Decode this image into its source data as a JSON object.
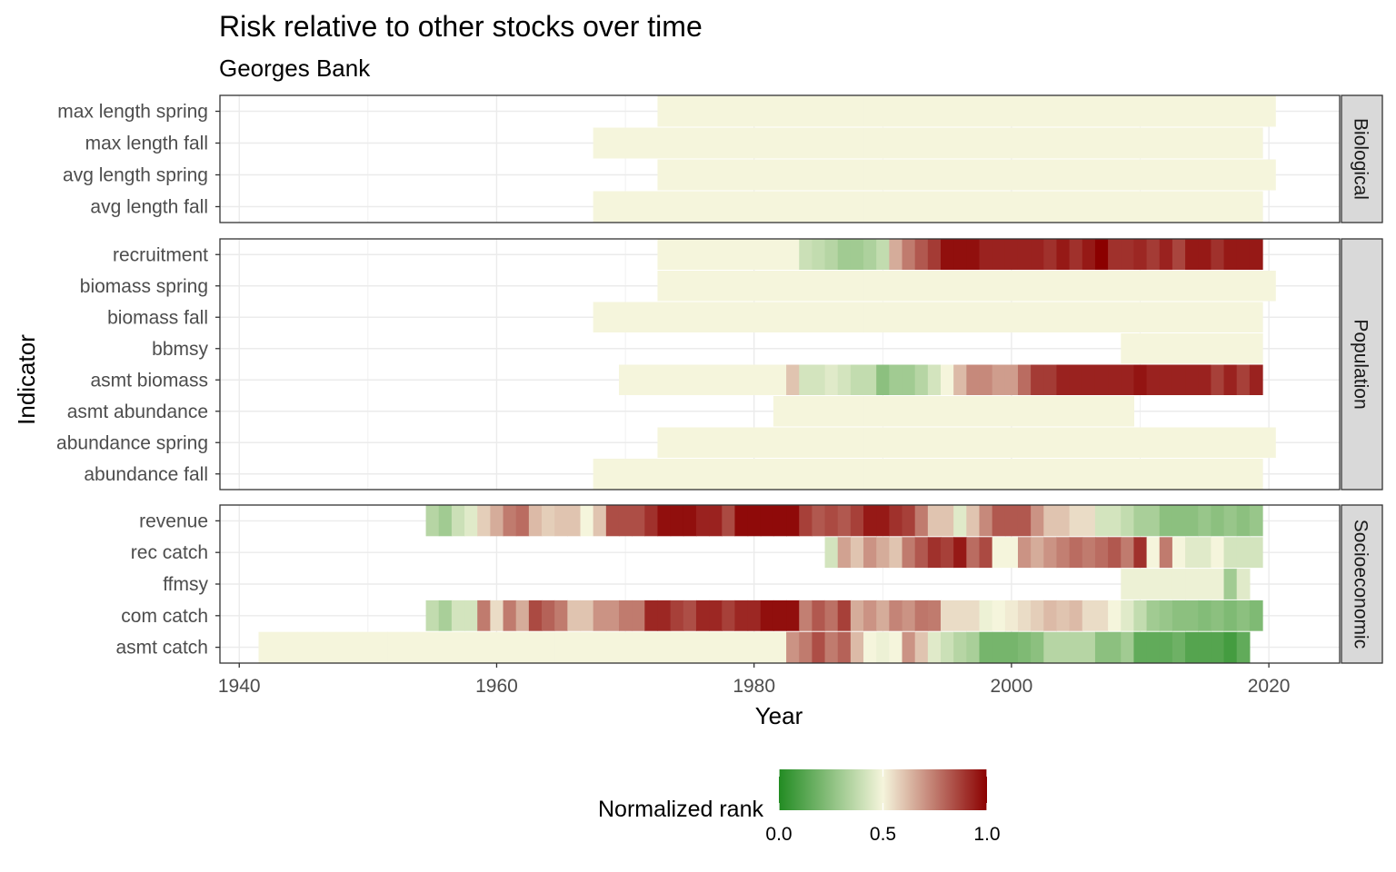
{
  "chart_data": {
    "type": "heatmap",
    "title": "Risk relative to other stocks over time",
    "subtitle": "Georges Bank",
    "xlabel": "Year",
    "ylabel": "Indicator",
    "xlim": [
      1938.5,
      2025.5
    ],
    "x_ticks": [
      1940,
      1960,
      1980,
      2000,
      2020
    ],
    "grid": true,
    "legend": {
      "title": "Normalized rank",
      "position": "bottom",
      "ticks": [
        0.0,
        0.5,
        1.0
      ],
      "tick_labels": [
        "0.0",
        "0.5",
        "1.0"
      ],
      "colors": [
        "#228B22",
        "#F5F5DC",
        "#8B0000"
      ]
    },
    "panels": [
      {
        "name": "Biological",
        "rows": [
          {
            "indicator": "max length spring",
            "segments": [
              {
                "start": 1973,
                "end": 2020,
                "values": [
                  0.5
                ]
              }
            ]
          },
          {
            "indicator": "max length fall",
            "segments": [
              {
                "start": 1968,
                "end": 2019,
                "values": [
                  0.5
                ]
              }
            ]
          },
          {
            "indicator": "avg length spring",
            "segments": [
              {
                "start": 1973,
                "end": 2020,
                "values": [
                  0.5
                ]
              }
            ]
          },
          {
            "indicator": "avg length fall",
            "segments": [
              {
                "start": 1968,
                "end": 2019,
                "values": [
                  0.5
                ]
              }
            ]
          }
        ]
      },
      {
        "name": "Population",
        "rows": [
          {
            "indicator": "recruitment",
            "segments": [
              {
                "start": 1973,
                "end": 1983,
                "values": [
                  0.5
                ]
              },
              {
                "start": 1984,
                "end": 2019,
                "values": [
                  0.4,
                  0.38,
                  0.35,
                  0.3,
                  0.3,
                  0.33,
                  0.38,
                  0.65,
                  0.75,
                  0.82,
                  0.88,
                  0.97,
                  0.97,
                  0.97,
                  0.93,
                  0.93,
                  0.93,
                  0.93,
                  0.93,
                  0.9,
                  0.95,
                  0.9,
                  0.95,
                  1.0,
                  0.9,
                  0.9,
                  0.92,
                  0.88,
                  0.93,
                  0.86,
                  0.95,
                  0.95,
                  0.9,
                  0.95,
                  0.95,
                  0.95
                ]
              }
            ]
          },
          {
            "indicator": "biomass spring",
            "segments": [
              {
                "start": 1973,
                "end": 2020,
                "values": [
                  0.5
                ]
              }
            ]
          },
          {
            "indicator": "biomass fall",
            "segments": [
              {
                "start": 1968,
                "end": 2019,
                "values": [
                  0.5
                ]
              }
            ]
          },
          {
            "indicator": "bbmsy",
            "segments": [
              {
                "start": 2009,
                "end": 2019,
                "values": [
                  0.5
                ]
              }
            ]
          },
          {
            "indicator": "asmt biomass",
            "segments": [
              {
                "start": 1970,
                "end": 1982,
                "values": [
                  0.5
                ]
              },
              {
                "start": 1983,
                "end": 2019,
                "values": [
                  0.6,
                  0.42,
                  0.42,
                  0.45,
                  0.42,
                  0.38,
                  0.38,
                  0.25,
                  0.3,
                  0.3,
                  0.35,
                  0.42,
                  0.5,
                  0.62,
                  0.72,
                  0.72,
                  0.68,
                  0.68,
                  0.78,
                  0.88,
                  0.88,
                  0.93,
                  0.93,
                  0.93,
                  0.93,
                  0.93,
                  0.93,
                  0.96,
                  0.93,
                  0.93,
                  0.93,
                  0.93,
                  0.93,
                  0.87,
                  0.93,
                  0.87,
                  0.93
                ]
              }
            ]
          },
          {
            "indicator": "asmt abundance",
            "segments": [
              {
                "start": 1982,
                "end": 2009,
                "values": [
                  0.5
                ]
              }
            ]
          },
          {
            "indicator": "abundance spring",
            "segments": [
              {
                "start": 1973,
                "end": 2020,
                "values": [
                  0.5
                ]
              }
            ]
          },
          {
            "indicator": "abundance fall",
            "segments": [
              {
                "start": 1968,
                "end": 2019,
                "values": [
                  0.5
                ]
              }
            ]
          }
        ]
      },
      {
        "name": "Socioeconomic",
        "rows": [
          {
            "indicator": "revenue",
            "segments": [
              {
                "start": 1955,
                "end": 2019,
                "values": [
                  0.35,
                  0.3,
                  0.4,
                  0.45,
                  0.58,
                  0.65,
                  0.75,
                  0.78,
                  0.62,
                  0.58,
                  0.6,
                  0.6,
                  0.5,
                  0.6,
                  0.84,
                  0.84,
                  0.84,
                  0.9,
                  0.97,
                  0.97,
                  0.97,
                  0.93,
                  0.93,
                  0.85,
                  0.98,
                  0.98,
                  0.98,
                  0.98,
                  0.98,
                  0.87,
                  0.82,
                  0.85,
                  0.82,
                  0.87,
                  0.95,
                  0.95,
                  0.9,
                  0.87,
                  0.75,
                  0.6,
                  0.6,
                  0.45,
                  0.6,
                  0.72,
                  0.82,
                  0.82,
                  0.82,
                  0.7,
                  0.6,
                  0.6,
                  0.55,
                  0.55,
                  0.42,
                  0.42,
                  0.38,
                  0.32,
                  0.32,
                  0.25,
                  0.25,
                  0.25,
                  0.28,
                  0.25,
                  0.28,
                  0.25,
                  0.28
                ]
              }
            ]
          },
          {
            "indicator": "rec catch",
            "segments": [
              {
                "start": 1986,
                "end": 2019,
                "values": [
                  0.42,
                  0.67,
                  0.6,
                  0.7,
                  0.65,
                  0.6,
                  0.75,
                  0.82,
                  0.9,
                  0.87,
                  0.95,
                  0.78,
                  0.85,
                  0.5,
                  0.5,
                  0.7,
                  0.65,
                  0.7,
                  0.74,
                  0.78,
                  0.75,
                  0.78,
                  0.82,
                  0.75,
                  0.9,
                  0.5,
                  0.75,
                  0.5,
                  0.45,
                  0.45,
                  0.5,
                  0.42,
                  0.42,
                  0.42
                ]
              }
            ]
          },
          {
            "indicator": "ffmsy",
            "segments": [
              {
                "start": 2009,
                "end": 2016,
                "values": [
                  0.48
                ]
              },
              {
                "start": 2017,
                "end": 2018,
                "values": [
                  0.3,
                  0.45
                ]
              }
            ]
          },
          {
            "indicator": "com catch",
            "segments": [
              {
                "start": 1955,
                "end": 2019,
                "values": [
                  0.38,
                  0.32,
                  0.42,
                  0.42,
                  0.75,
                  0.55,
                  0.75,
                  0.65,
                  0.85,
                  0.8,
                  0.75,
                  0.6,
                  0.6,
                  0.7,
                  0.7,
                  0.75,
                  0.75,
                  0.92,
                  0.92,
                  0.87,
                  0.84,
                  0.92,
                  0.92,
                  0.87,
                  0.92,
                  0.92,
                  0.97,
                  0.97,
                  0.97,
                  0.74,
                  0.82,
                  0.77,
                  0.87,
                  0.65,
                  0.7,
                  0.65,
                  0.73,
                  0.7,
                  0.76,
                  0.75,
                  0.55,
                  0.55,
                  0.55,
                  0.48,
                  0.5,
                  0.52,
                  0.55,
                  0.58,
                  0.62,
                  0.6,
                  0.62,
                  0.55,
                  0.55,
                  0.5,
                  0.45,
                  0.38,
                  0.3,
                  0.28,
                  0.25,
                  0.25,
                  0.23,
                  0.25,
                  0.22,
                  0.25,
                  0.22
                ]
              }
            ]
          },
          {
            "indicator": "asmt catch",
            "segments": [
              {
                "start": 1942,
                "end": 1982,
                "values": [
                  0.5
                ]
              },
              {
                "start": 1983,
                "end": 2018,
                "values": [
                  0.7,
                  0.75,
                  0.84,
                  0.75,
                  0.8,
                  0.62,
                  0.5,
                  0.48,
                  0.5,
                  0.7,
                  0.6,
                  0.45,
                  0.4,
                  0.35,
                  0.32,
                  0.2,
                  0.2,
                  0.2,
                  0.22,
                  0.25,
                  0.35,
                  0.35,
                  0.35,
                  0.35,
                  0.25,
                  0.25,
                  0.3,
                  0.15,
                  0.15,
                  0.15,
                  0.18,
                  0.12,
                  0.12,
                  0.12,
                  0.08,
                  0.15
                ]
              }
            ]
          }
        ]
      }
    ]
  }
}
